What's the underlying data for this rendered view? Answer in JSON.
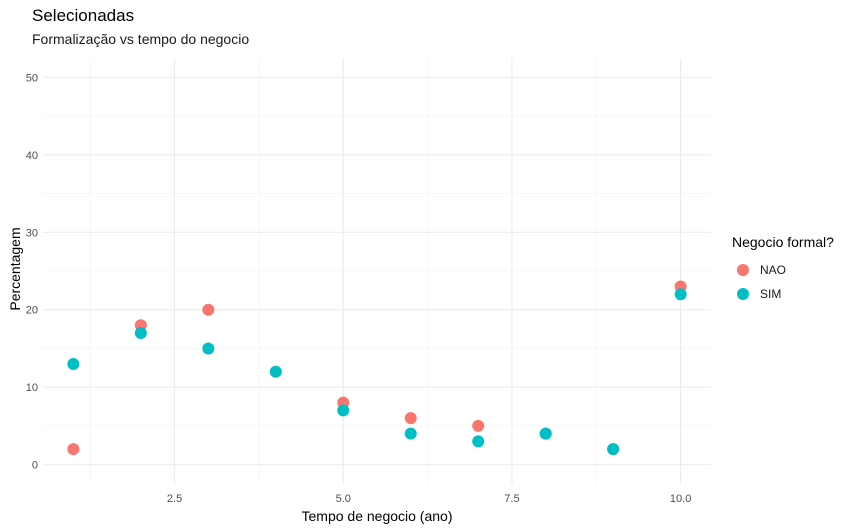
{
  "header": {
    "title": "Selecionadas",
    "subtitle": "Formalização vs tempo do negocio"
  },
  "legend": {
    "title": "Negocio formal?",
    "items": [
      {
        "label": "NAO",
        "color": "#F8766D"
      },
      {
        "label": "SIM",
        "color": "#00BFC4"
      }
    ]
  },
  "chart_data": {
    "type": "scatter",
    "title": "Selecionadas",
    "subtitle": "Formalização vs tempo do negocio",
    "xlabel": "Tempo de negocio (ano)",
    "ylabel": "Percentagem",
    "xlim": [
      0.55,
      10.45
    ],
    "ylim": [
      -2.5,
      52.5
    ],
    "xticks": [
      2.5,
      5.0,
      7.5,
      10.0
    ],
    "xtick_labels": [
      "2.5",
      "5.0",
      "7.5",
      "10.0"
    ],
    "yticks": [
      0,
      10,
      20,
      30,
      40,
      50
    ],
    "ytick_labels": [
      "0",
      "10",
      "20",
      "30",
      "40",
      "50"
    ],
    "grid": true,
    "legend_position": "right",
    "series": [
      {
        "name": "NAO",
        "color": "#F8766D",
        "points": [
          [
            1,
            2
          ],
          [
            2,
            18
          ],
          [
            3,
            20
          ],
          [
            4,
            12
          ],
          [
            5,
            8
          ],
          [
            6,
            6
          ],
          [
            7,
            5
          ],
          [
            8,
            4
          ],
          [
            9,
            2
          ],
          [
            10,
            23
          ]
        ]
      },
      {
        "name": "SIM",
        "color": "#00BFC4",
        "points": [
          [
            1,
            13
          ],
          [
            2,
            17
          ],
          [
            3,
            15
          ],
          [
            4,
            12
          ],
          [
            5,
            7
          ],
          [
            6,
            4
          ],
          [
            7,
            3
          ],
          [
            8,
            4
          ],
          [
            9,
            2
          ],
          [
            10,
            22
          ]
        ]
      }
    ]
  }
}
